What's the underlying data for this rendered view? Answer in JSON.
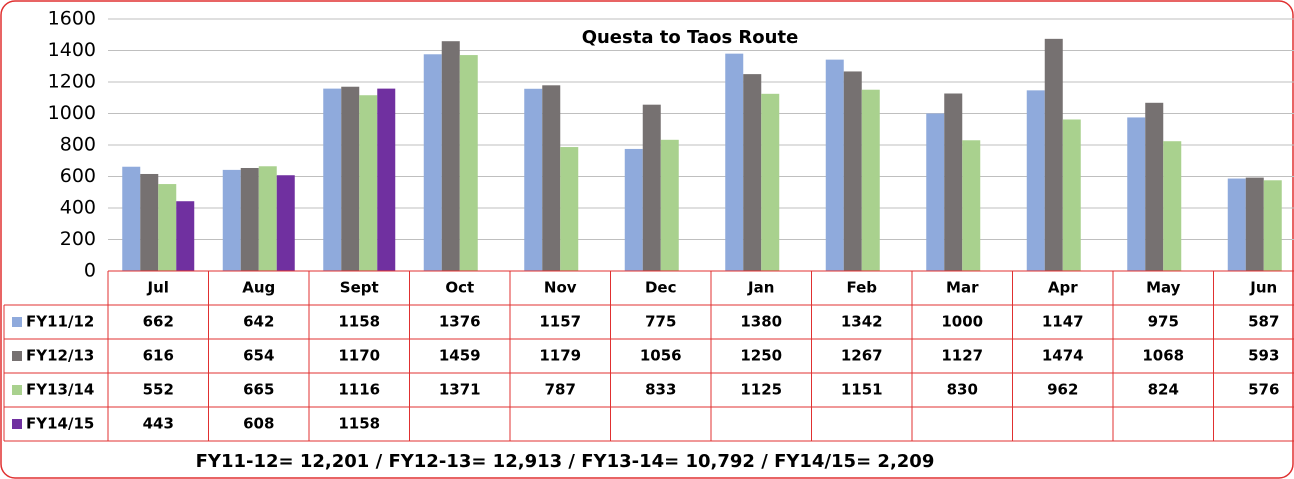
{
  "chart_data": {
    "type": "bar",
    "title": "Questa to Taos Route",
    "categories": [
      "Jul",
      "Aug",
      "Sept",
      "Oct",
      "Nov",
      "Dec",
      "Jan",
      "Feb",
      "Mar",
      "Apr",
      "May",
      "Jun"
    ],
    "series": [
      {
        "name": "FY11/12",
        "color": "#8faadc",
        "values": [
          662,
          642,
          1158,
          1376,
          1157,
          775,
          1380,
          1342,
          1000,
          1147,
          975,
          587
        ]
      },
      {
        "name": "FY12/13",
        "color": "#767171",
        "values": [
          616,
          654,
          1170,
          1459,
          1179,
          1056,
          1250,
          1267,
          1127,
          1474,
          1068,
          593
        ]
      },
      {
        "name": "FY13/14",
        "color": "#a9d18e",
        "values": [
          552,
          665,
          1116,
          1371,
          787,
          833,
          1125,
          1151,
          830,
          962,
          824,
          576
        ]
      },
      {
        "name": "FY14/15",
        "color": "#7030a0",
        "values": [
          443,
          608,
          1158,
          null,
          null,
          null,
          null,
          null,
          null,
          null,
          null,
          null
        ]
      }
    ],
    "ylim": [
      0,
      1600
    ],
    "yticks": [
      0,
      200,
      400,
      600,
      800,
      1000,
      1200,
      1400,
      1600
    ],
    "grid": true,
    "annotation": "FY11-12=  12,201 /  FY12-13= 12,913 / FY13-14= 10,792 / FY14/15= 2,209"
  }
}
